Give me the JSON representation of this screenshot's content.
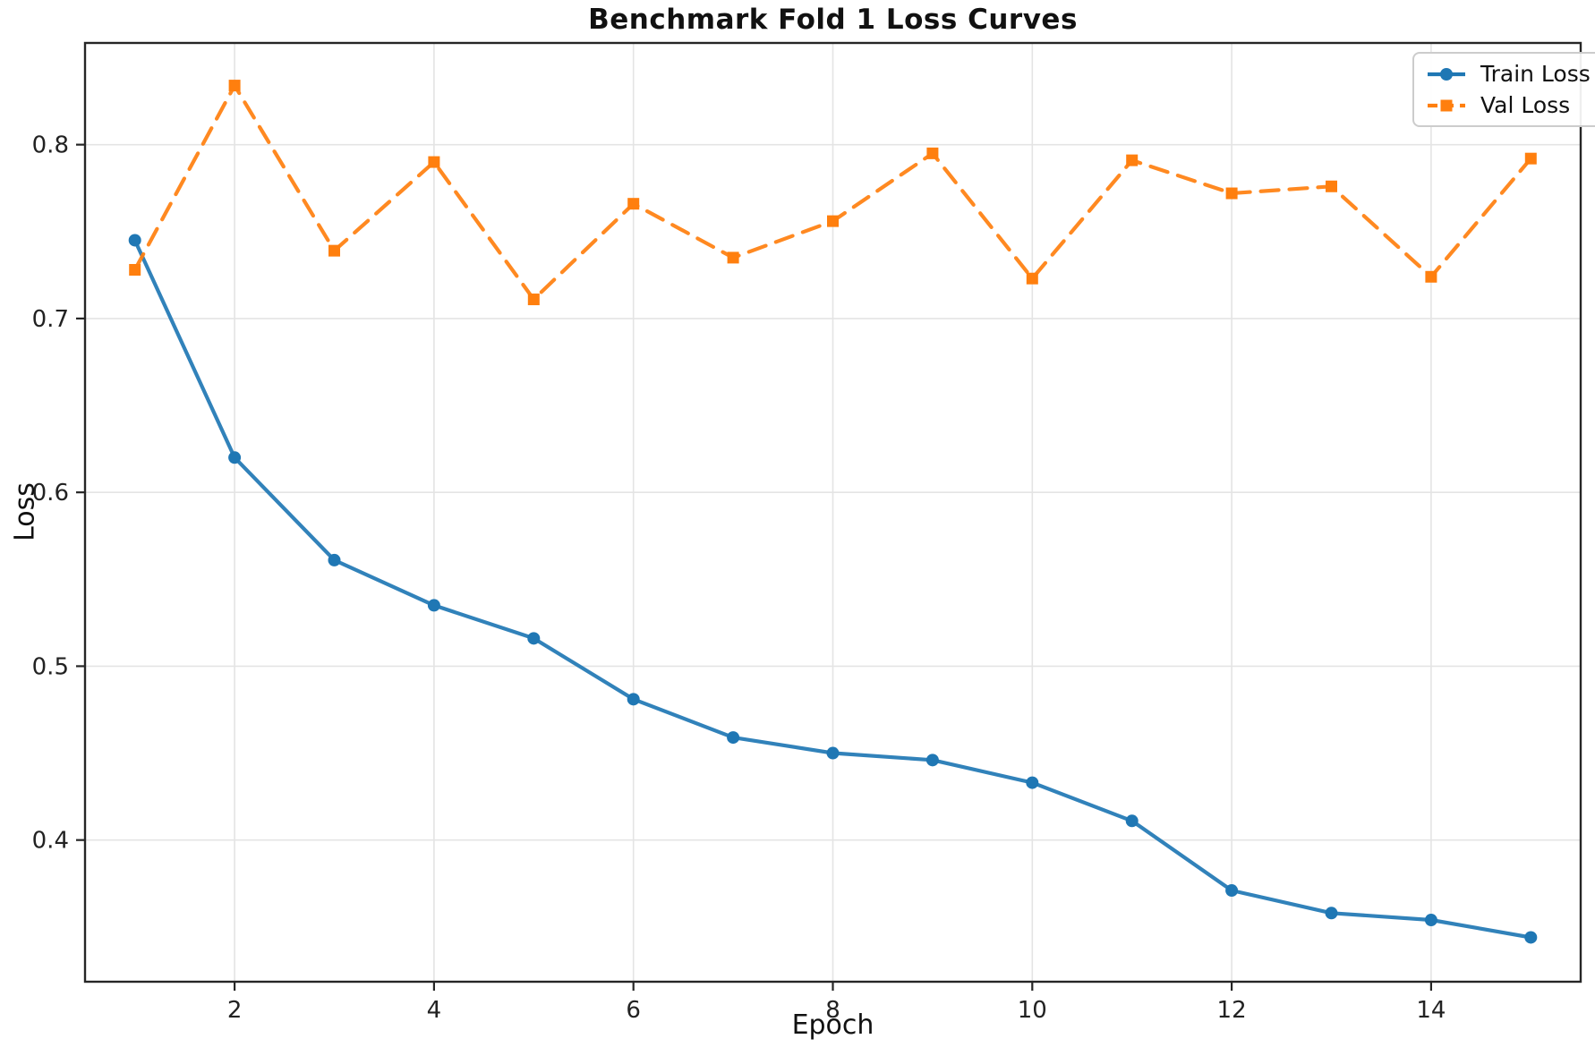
{
  "chart_data": {
    "type": "line",
    "title": "Benchmark Fold 1 Loss Curves",
    "xlabel": "Epoch",
    "ylabel": "Loss",
    "x": [
      1,
      2,
      3,
      4,
      5,
      6,
      7,
      8,
      9,
      10,
      11,
      12,
      13,
      14,
      15
    ],
    "series": [
      {
        "name": "Train Loss",
        "color": "#1f77b4",
        "linestyle": "solid",
        "marker": "circle",
        "values": [
          0.745,
          0.62,
          0.561,
          0.535,
          0.516,
          0.481,
          0.459,
          0.45,
          0.446,
          0.433,
          0.411,
          0.371,
          0.358,
          0.354,
          0.344
        ]
      },
      {
        "name": "Val Loss",
        "color": "#ff7f0e",
        "linestyle": "dashed",
        "marker": "square",
        "values": [
          0.728,
          0.834,
          0.739,
          0.79,
          0.711,
          0.766,
          0.735,
          0.756,
          0.795,
          0.723,
          0.791,
          0.772,
          0.776,
          0.724,
          0.792
        ]
      }
    ],
    "xlim": [
      0.5,
      15.5
    ],
    "ylim": [
      0.3185,
      0.8585
    ],
    "xticks": [
      2,
      4,
      6,
      8,
      10,
      12,
      14
    ],
    "yticks": [
      0.4,
      0.5,
      0.6,
      0.7,
      0.8
    ],
    "grid": true,
    "legend_position": "upper right"
  },
  "style": {
    "grid_color": "#e4e4e4",
    "spine_color": "#262626",
    "tick_label_color": "#222222",
    "line_width": 4.2,
    "dash_pattern": "20 12"
  }
}
